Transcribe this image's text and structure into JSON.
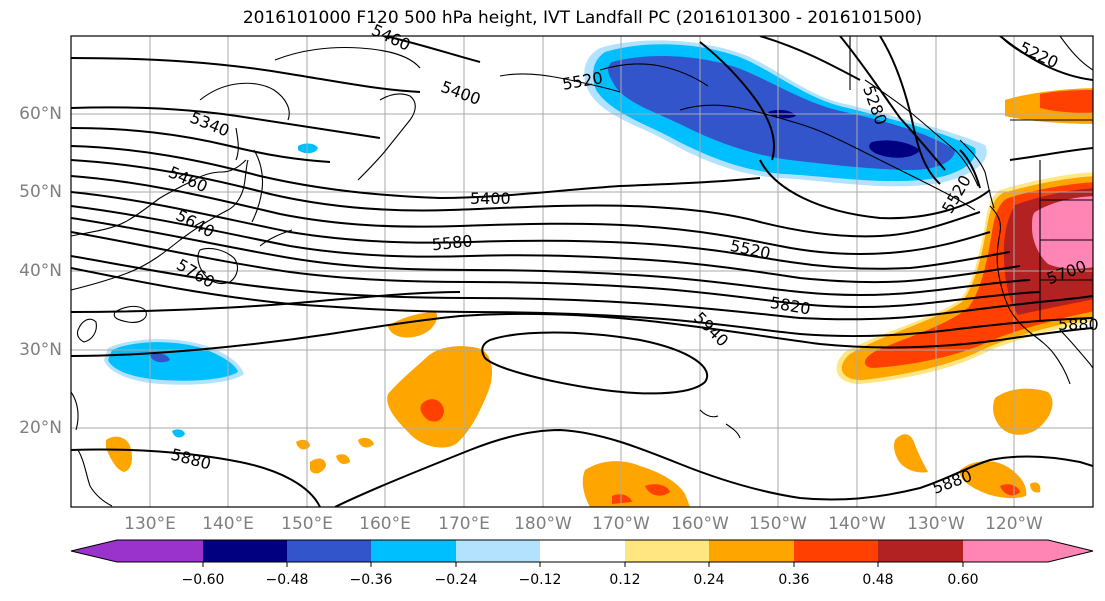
{
  "title": "2016101000 F120 500 hPa height, IVT Landfall PC (2016101300 - 2016101500)",
  "lat_ticks": [
    "60°N",
    "50°N",
    "40°N",
    "30°N",
    "20°N"
  ],
  "lon_ticks": [
    "130°E",
    "140°E",
    "150°E",
    "160°E",
    "170°E",
    "180°W",
    "170°W",
    "160°W",
    "150°W",
    "140°W",
    "130°W",
    "120°W"
  ],
  "contour_labels": [
    "5460",
    "5400",
    "5520",
    "5340",
    "5460",
    "5640",
    "5760",
    "5400",
    "5580",
    "5520",
    "5820",
    "5940",
    "5880",
    "5880",
    "5280",
    "5520",
    "5700",
    "5880",
    "5220"
  ],
  "colorbar": {
    "ticks": [
      "−0.60",
      "−0.48",
      "−0.36",
      "−0.24",
      "−0.12",
      "0.12",
      "0.24",
      "0.36",
      "0.48",
      "0.60"
    ],
    "colors": {
      "lt_neg060": "#9933cc",
      "neg060_048": "#000080",
      "neg048_036": "#3355cc",
      "neg036_024": "#00bfff",
      "neg024_012": "#b3e2ff",
      "neg012_012": "#ffffff",
      "p012_024": "#ffe680",
      "p024_036": "#ffa500",
      "p036_048": "#ff4000",
      "p048_060": "#b22222",
      "gt_060": "#ff85b5"
    }
  }
}
